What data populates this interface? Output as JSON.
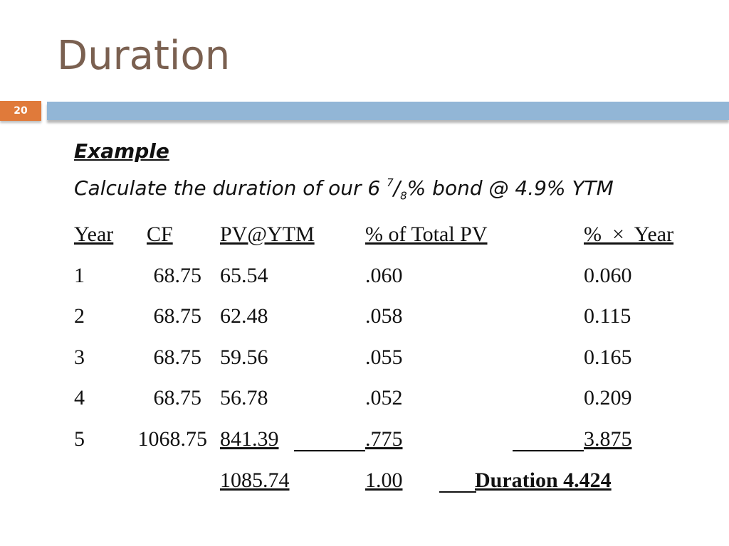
{
  "slide": {
    "title": "Duration",
    "number": "20"
  },
  "content": {
    "example_label": "Example",
    "problem_prefix": "Calculate the duration of our 6 ",
    "problem_num": "7",
    "problem_slash": "/",
    "problem_den": "8",
    "problem_suffix": "% bond @ 4.9% YTM"
  },
  "table": {
    "headers": [
      "Year",
      "CF",
      "PV@YTM",
      "% of Total PV",
      "%  ×  Year"
    ],
    "rows": [
      [
        "1",
        "68.75",
        "65.54",
        ".060",
        "0.060"
      ],
      [
        "2",
        "68.75",
        "62.48",
        ".058",
        "0.115"
      ],
      [
        "3",
        "68.75",
        "59.56",
        ".055",
        "0.165"
      ],
      [
        "4",
        "68.75",
        "56.78",
        ".052",
        "0.209"
      ],
      [
        "5",
        "1068.75",
        "841.39",
        ".775",
        "3.875"
      ]
    ],
    "total_pv": "1085.74",
    "total_pct": "1.00",
    "duration_label": "Duration 4.424"
  }
}
